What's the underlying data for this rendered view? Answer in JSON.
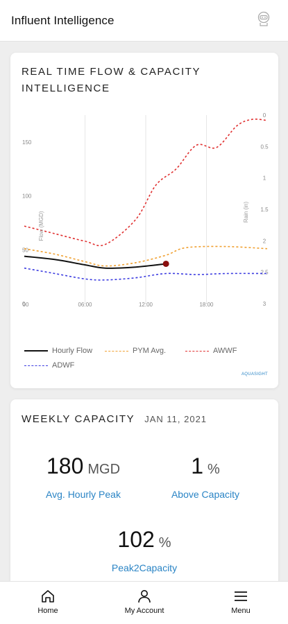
{
  "header": {
    "title": "Influent Intelligence",
    "icon": "robot-avatar-icon"
  },
  "flow_card": {
    "title": "REAL TIME FLOW & CAPACITY INTELLIGENCE",
    "watermark": "AQUASIGHT",
    "legend": [
      {
        "label": "Hourly Flow",
        "color": "#111111",
        "style": "solid"
      },
      {
        "label": "PYM Avg.",
        "color": "#f0a030",
        "style": "dashed"
      },
      {
        "label": "AWWF",
        "color": "#e03030",
        "style": "dashed"
      },
      {
        "label": "ADWF",
        "color": "#3a3ae0",
        "style": "dashed"
      }
    ]
  },
  "chart_data": {
    "type": "line",
    "xlabel": "",
    "ylabel": "Flow (MGD)",
    "y2label": "Rain (in)",
    "x_ticks": [
      "00",
      "06:00",
      "12:00",
      "18:00"
    ],
    "x_range": [
      0,
      24
    ],
    "ylim": [
      0,
      175
    ],
    "y_ticks": [
      0,
      50,
      100,
      150
    ],
    "y2lim": [
      3,
      0
    ],
    "y2_ticks": [
      0,
      0.5,
      1,
      1.5,
      2,
      2.5,
      3
    ],
    "y2_tick_labels": [
      "0",
      "0.5",
      "1",
      "1.5",
      "2",
      "2.5",
      "3"
    ],
    "grid": "vertical",
    "legend_position": "bottom",
    "series": [
      {
        "name": "Hourly Flow",
        "color": "#111111",
        "style": "solid",
        "x": [
          0,
          3,
          6,
          8,
          11,
          14
        ],
        "y": [
          44,
          41,
          36,
          33,
          34,
          37
        ],
        "end_marker": true
      },
      {
        "name": "PYM Avg.",
        "color": "#f0a030",
        "style": "dashed",
        "x": [
          0,
          3,
          6,
          8,
          11,
          14,
          16,
          20,
          24
        ],
        "y": [
          51,
          46,
          39,
          35,
          38,
          45,
          52,
          53,
          51
        ]
      },
      {
        "name": "AWWF",
        "color": "#e03030",
        "style": "dashed",
        "x": [
          0,
          3,
          6,
          8,
          11,
          13,
          15,
          17,
          19,
          21,
          22.5,
          24
        ],
        "y": [
          72,
          65,
          58,
          55,
          78,
          110,
          125,
          147,
          145,
          165,
          171,
          170
        ]
      },
      {
        "name": "ADWF",
        "color": "#3a3ae0",
        "style": "dashed",
        "x": [
          0,
          3,
          6,
          8,
          11,
          14,
          17,
          20,
          24
        ],
        "y": [
          33,
          28,
          23,
          22,
          24,
          28,
          27,
          28,
          28
        ]
      }
    ]
  },
  "weekly": {
    "title": "WEEKLY CAPACITY",
    "date": "JAN 11, 2021",
    "stats": [
      {
        "value": "180",
        "unit": "MGD",
        "label": "Avg. Hourly Peak"
      },
      {
        "value": "1",
        "unit": "%",
        "label": "Above Capacity"
      },
      {
        "value": "102",
        "unit": "%",
        "label": "Peak2Capacity"
      }
    ]
  },
  "nav": {
    "items": [
      {
        "label": "Home",
        "icon": "home-icon"
      },
      {
        "label": "My Account",
        "icon": "user-icon"
      },
      {
        "label": "Menu",
        "icon": "menu-icon"
      }
    ]
  }
}
